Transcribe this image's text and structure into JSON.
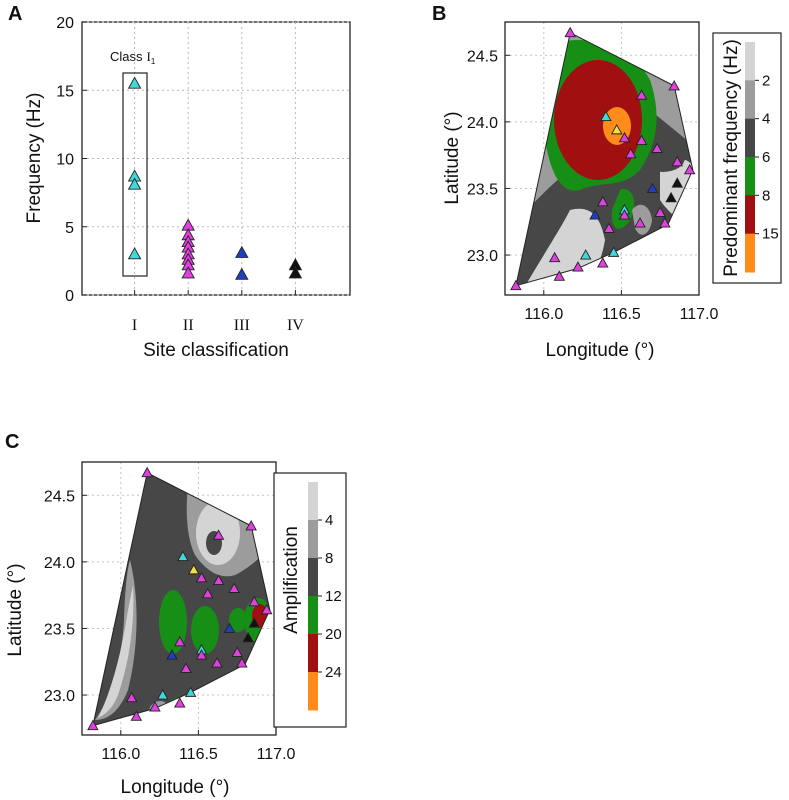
{
  "chart_data": [
    {
      "panel": "A",
      "type": "scatter",
      "title": "",
      "xlabel": "Site classification",
      "ylabel": "Frequency (Hz)",
      "categories": [
        "I",
        "II",
        "III",
        "IV"
      ],
      "ylim": [
        0,
        20
      ],
      "yticks": [
        0,
        5,
        10,
        15,
        20
      ],
      "annotation": "Class",
      "annotation_class": "I",
      "annotation_sub": "1",
      "series": [
        {
          "name": "I",
          "color": "#40d8d8",
          "values": [
            15.5,
            8.7,
            8.1,
            3.0
          ]
        },
        {
          "name": "II",
          "color": "#e040e0",
          "values": [
            5.1,
            4.4,
            3.9,
            3.5,
            3.0,
            2.6,
            2.2,
            1.6
          ]
        },
        {
          "name": "III",
          "color": "#1f3fbf",
          "values": [
            3.1,
            1.5
          ]
        },
        {
          "name": "IV",
          "color": "#111111",
          "values": [
            2.2,
            1.6
          ]
        }
      ]
    },
    {
      "panel": "B",
      "type": "heatmap",
      "xlabel": "Longitude (°)",
      "ylabel": "Latitude (°)",
      "xlim": [
        115.75,
        117.0
      ],
      "ylim": [
        22.7,
        24.75
      ],
      "xticks": [
        "116.0",
        "116.5",
        "117.0"
      ],
      "yticks": [
        "23.0",
        "23.5",
        "24.0",
        "24.5"
      ],
      "colorbar_title": "Predominant frequency (Hz)",
      "colorbar_levels": [
        "2",
        "4",
        "6",
        "8",
        "15"
      ],
      "colorbar_colors": [
        "#d4d4d4",
        "#9c9c9c",
        "#474747",
        "#178f17",
        "#a01010",
        "#ff8c1a"
      ]
    },
    {
      "panel": "C",
      "type": "heatmap",
      "xlabel": "Longitude (°)",
      "ylabel": "Latitude (°)",
      "xlim": [
        115.75,
        117.0
      ],
      "ylim": [
        22.7,
        24.75
      ],
      "xticks": [
        "116.0",
        "116.5",
        "117.0"
      ],
      "yticks": [
        "23.0",
        "23.5",
        "24.0",
        "24.5"
      ],
      "colorbar_title": "Amplification",
      "colorbar_levels": [
        "4",
        "8",
        "12",
        "20",
        "24"
      ],
      "colorbar_colors": [
        "#d4d4d4",
        "#9c9c9c",
        "#474747",
        "#178f17",
        "#a01010",
        "#ff8c1a"
      ]
    }
  ],
  "stations": [
    {
      "lon": 115.82,
      "lat": 22.77,
      "c": "m"
    },
    {
      "lon": 116.1,
      "lat": 22.84,
      "c": "m"
    },
    {
      "lon": 116.07,
      "lat": 22.98,
      "c": "m"
    },
    {
      "lon": 116.27,
      "lat": 23.0,
      "c": "c"
    },
    {
      "lon": 116.22,
      "lat": 22.91,
      "c": "m"
    },
    {
      "lon": 116.38,
      "lat": 22.94,
      "c": "m"
    },
    {
      "lon": 116.45,
      "lat": 23.02,
      "c": "c"
    },
    {
      "lon": 116.38,
      "lat": 23.4,
      "c": "m"
    },
    {
      "lon": 116.33,
      "lat": 23.3,
      "c": "b"
    },
    {
      "lon": 116.42,
      "lat": 23.2,
      "c": "m"
    },
    {
      "lon": 116.52,
      "lat": 23.34,
      "c": "c"
    },
    {
      "lon": 116.52,
      "lat": 23.3,
      "c": "m"
    },
    {
      "lon": 116.62,
      "lat": 23.24,
      "c": "m"
    },
    {
      "lon": 116.7,
      "lat": 23.5,
      "c": "b"
    },
    {
      "lon": 116.75,
      "lat": 23.32,
      "c": "m"
    },
    {
      "lon": 116.78,
      "lat": 23.24,
      "c": "m"
    },
    {
      "lon": 116.82,
      "lat": 23.43,
      "c": "k"
    },
    {
      "lon": 116.86,
      "lat": 23.54,
      "c": "k"
    },
    {
      "lon": 116.94,
      "lat": 23.64,
      "c": "m"
    },
    {
      "lon": 116.86,
      "lat": 23.7,
      "c": "m"
    },
    {
      "lon": 116.73,
      "lat": 23.8,
      "c": "m"
    },
    {
      "lon": 116.56,
      "lat": 23.76,
      "c": "m"
    },
    {
      "lon": 116.63,
      "lat": 23.86,
      "c": "m"
    },
    {
      "lon": 116.52,
      "lat": 23.88,
      "c": "m"
    },
    {
      "lon": 116.63,
      "lat": 24.2,
      "c": "m"
    },
    {
      "lon": 116.84,
      "lat": 24.27,
      "c": "m"
    },
    {
      "lon": 116.17,
      "lat": 24.67,
      "c": "m"
    },
    {
      "lon": 116.4,
      "lat": 24.04,
      "c": "c"
    },
    {
      "lon": 116.47,
      "lat": 23.94,
      "c": "y"
    }
  ],
  "colors": {
    "m": "#e040e0",
    "c": "#40d8d8",
    "b": "#1f3fbf",
    "k": "#111111",
    "y": "#f4e040"
  }
}
